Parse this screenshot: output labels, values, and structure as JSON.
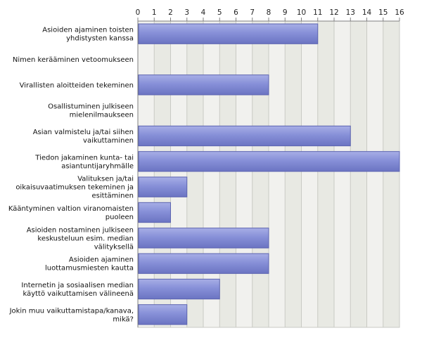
{
  "chart_data": {
    "type": "bar",
    "orientation": "horizontal",
    "title": "",
    "xlabel": "",
    "ylabel": "",
    "xlim": [
      0,
      16
    ],
    "ticks": [
      0,
      1,
      2,
      3,
      4,
      5,
      6,
      7,
      8,
      9,
      10,
      11,
      12,
      13,
      14,
      15,
      16
    ],
    "grid": true,
    "legend": "none",
    "bar_color": "#7c86d2",
    "categories": [
      [
        "Asioiden ajaminen toisten",
        "yhdistysten kanssa"
      ],
      [
        "Nimen kerääminen vetoomukseen"
      ],
      [
        "Virallisten aloitteiden tekeminen"
      ],
      [
        "Osallistuminen julkiseen",
        "mielenilmaukseen"
      ],
      [
        "Asian valmistelu ja/tai siihen",
        "vaikuttaminen"
      ],
      [
        "Tiedon jakaminen kunta- tai",
        "asiantuntijaryhmälle"
      ],
      [
        "Valituksen ja/tai",
        "oikaisuvaatimuksen tekeminen ja",
        "esittäminen"
      ],
      [
        "Kääntyminen valtion viranomaisten",
        "puoleen"
      ],
      [
        "Asioiden nostaminen julkiseen",
        "keskusteluun esim. median",
        "välityksellä"
      ],
      [
        "Asioiden ajaminen",
        "luottamusmiesten kautta"
      ],
      [
        "Internetin ja sosiaalisen median",
        "käyttö vaikuttamisen välineenä"
      ],
      [
        "Jokin muu vaikuttamistapa/kanava,",
        "mikä?"
      ]
    ],
    "values": [
      11,
      0,
      8,
      0,
      13,
      16,
      3,
      2,
      8,
      8,
      5,
      3
    ]
  }
}
